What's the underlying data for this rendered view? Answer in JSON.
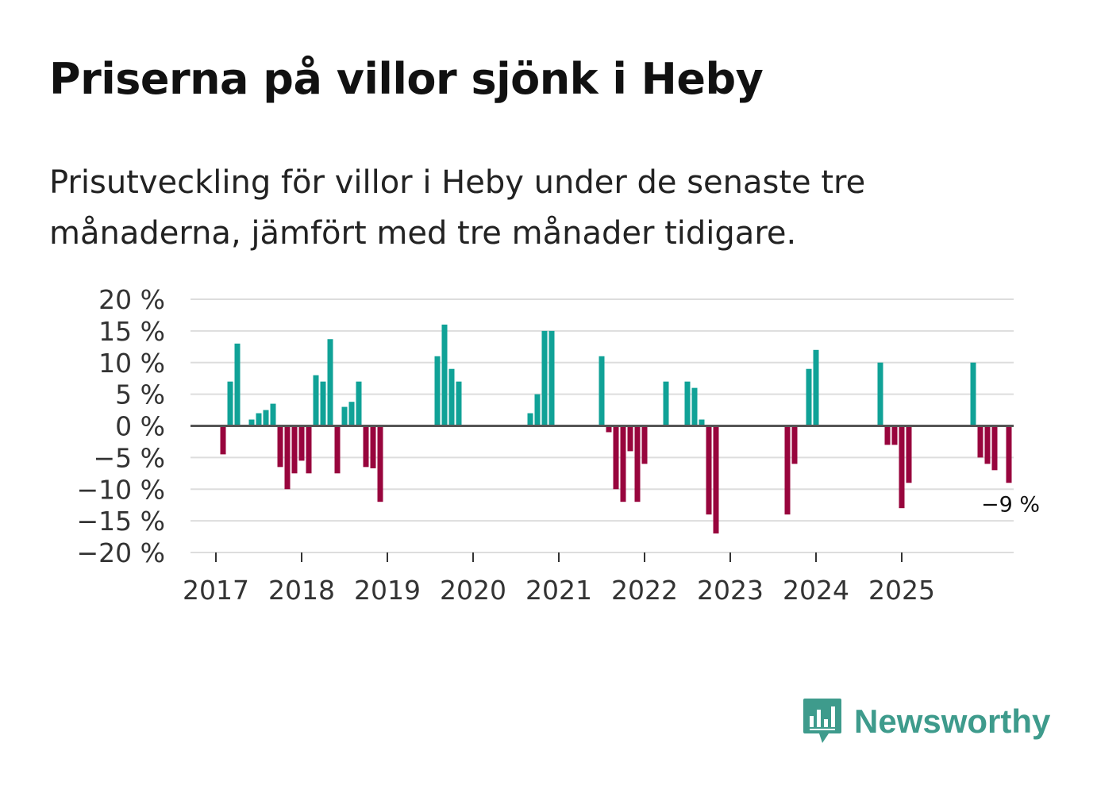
{
  "title": "Priserna på villor sjönk i Heby",
  "subtitle": "Prisutveckling för villor i Heby under de senaste tre månaderna, jämfört med tre månader tidigare.",
  "brand": {
    "name": "Newsworthy"
  },
  "colors": {
    "positive": "#10a297",
    "negative": "#98053d",
    "grid": "#dddddd",
    "zero_line": "#555555",
    "brand": "#3e9b8c"
  },
  "chart_data": {
    "type": "bar",
    "ylabel": "",
    "xlabel": "",
    "ylim": [
      -20,
      20
    ],
    "yticks": [
      {
        "value": 20,
        "label": "20 %"
      },
      {
        "value": 15,
        "label": "15 %"
      },
      {
        "value": 10,
        "label": "10 %"
      },
      {
        "value": 5,
        "label": "5 %"
      },
      {
        "value": 0,
        "label": "0 %"
      },
      {
        "value": -5,
        "label": "−5 %"
      },
      {
        "value": -10,
        "label": "−10 %"
      },
      {
        "value": -15,
        "label": "−15 %"
      },
      {
        "value": -20,
        "label": "−20 %"
      }
    ],
    "xticks": [
      "2017",
      "2018",
      "2019",
      "2020",
      "2021",
      "2022",
      "2023",
      "2024",
      "2025"
    ],
    "start": "2017-01",
    "values": [
      null,
      -4.5,
      7,
      13,
      null,
      1,
      2,
      2.5,
      3.5,
      -6.5,
      -10,
      -7.5,
      -5.5,
      -7.5,
      8,
      7,
      13.7,
      -7.5,
      3,
      3.8,
      7,
      -6.5,
      -6.7,
      -12,
      null,
      null,
      null,
      null,
      null,
      null,
      null,
      11,
      16,
      9,
      7,
      null,
      null,
      null,
      null,
      null,
      null,
      null,
      null,
      null,
      2,
      5,
      15,
      15,
      null,
      null,
      null,
      null,
      null,
      null,
      11,
      -1,
      -10,
      -12,
      -4,
      -12,
      -6,
      null,
      null,
      7,
      null,
      null,
      7,
      6,
      1,
      -14,
      -17,
      null,
      null,
      null,
      null,
      null,
      null,
      null,
      null,
      null,
      -14,
      -6,
      null,
      9,
      12,
      null,
      null,
      null,
      null,
      null,
      null,
      null,
      null,
      10,
      -3,
      -3,
      -13,
      -9,
      null,
      null,
      null,
      null,
      null,
      null,
      null,
      null,
      10,
      -5,
      -6,
      -7,
      null,
      -9
    ],
    "annotation": {
      "label": "−9 %",
      "value": -9
    }
  }
}
